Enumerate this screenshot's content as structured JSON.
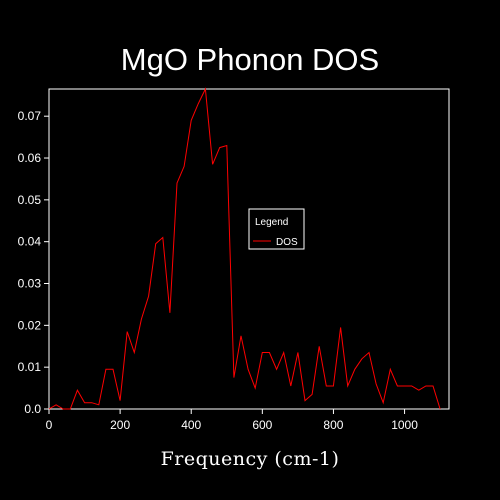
{
  "chart_data": {
    "type": "line",
    "title": "MgO Phonon DOS",
    "xlabel": "Frequency (cm-1)",
    "ylabel": "",
    "xlim": [
      0,
      1125
    ],
    "ylim": [
      0,
      0.0765
    ],
    "xticks": [
      0,
      200,
      400,
      600,
      800,
      1000
    ],
    "xtick_labels": [
      "0",
      "200",
      "400",
      "600",
      "800",
      "1000"
    ],
    "yticks": [
      0,
      0.01,
      0.02,
      0.03,
      0.04,
      0.05,
      0.06,
      0.07
    ],
    "ytick_labels": [
      "0.0",
      "0.01",
      "0.02",
      "0.03",
      "0.04",
      "0.05",
      "0.06",
      "0.07"
    ],
    "grid": false,
    "legend": {
      "title": "Legend",
      "placement": "center-right"
    },
    "series": [
      {
        "name": "DOS",
        "color": "#ff0000",
        "x": [
          0,
          20,
          40,
          60,
          80,
          100,
          120,
          140,
          160,
          180,
          200,
          220,
          240,
          260,
          280,
          300,
          320,
          340,
          360,
          380,
          400,
          420,
          440,
          460,
          480,
          500,
          520,
          540,
          560,
          580,
          600,
          620,
          640,
          660,
          680,
          700,
          720,
          740,
          760,
          780,
          800,
          820,
          840,
          860,
          880,
          900,
          920,
          940,
          960,
          980,
          1000,
          1020,
          1040,
          1060,
          1080,
          1100
        ],
        "y": [
          0.0,
          0.001,
          0.0,
          0.0,
          0.0045,
          0.0015,
          0.0015,
          0.001,
          0.0095,
          0.0095,
          0.002,
          0.0185,
          0.0135,
          0.0215,
          0.027,
          0.0395,
          0.041,
          0.023,
          0.054,
          0.058,
          0.069,
          0.073,
          0.0765,
          0.0585,
          0.0625,
          0.063,
          0.0075,
          0.0175,
          0.0095,
          0.005,
          0.0135,
          0.0135,
          0.0095,
          0.0135,
          0.0055,
          0.0135,
          0.002,
          0.0035,
          0.015,
          0.0055,
          0.0055,
          0.0195,
          0.0055,
          0.0095,
          0.012,
          0.0135,
          0.006,
          0.0015,
          0.0095,
          0.0055,
          0.0055,
          0.0055,
          0.0045,
          0.0055,
          0.0055,
          0.0
        ]
      }
    ]
  }
}
